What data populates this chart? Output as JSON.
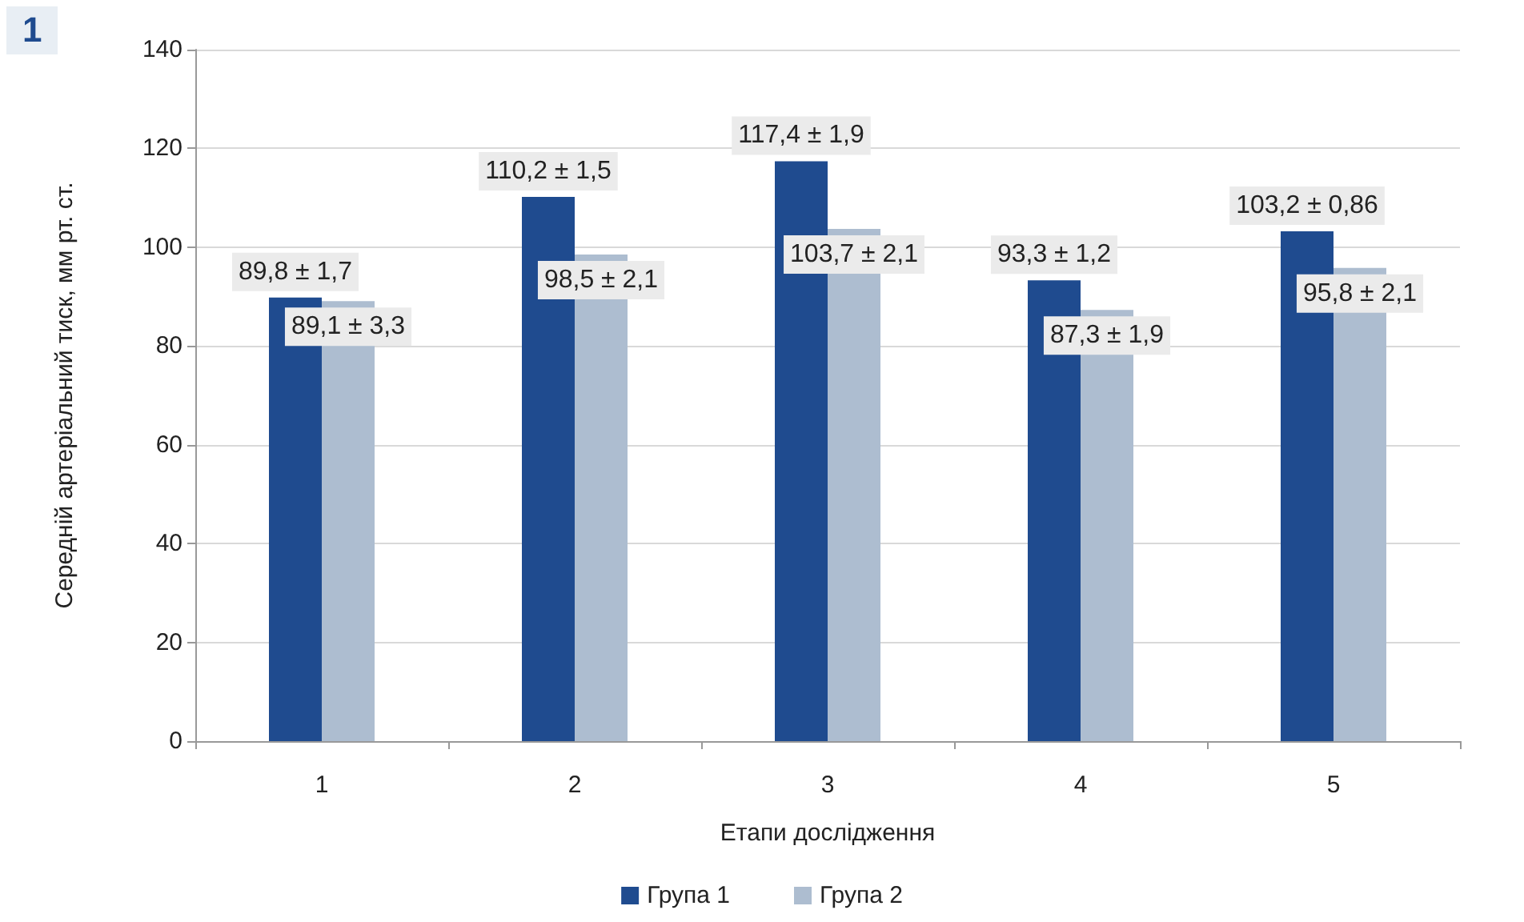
{
  "chart_data": {
    "type": "bar",
    "xlabel": "Етапи дослідження",
    "ylabel": "Середній артеріальний тиск, мм рт. ст.",
    "categories": [
      "1",
      "2",
      "3",
      "4",
      "5"
    ],
    "series": [
      {
        "name": "Група 1",
        "color": "#1f4b8f",
        "values": [
          89.8,
          110.2,
          117.4,
          93.3,
          103.2
        ],
        "value_labels": [
          "89,8 ± 1,7",
          "110,2 ± 1,5",
          "117,4 ± 1,9",
          "93,3 ± 1,2",
          "103,2 ± 0,86"
        ]
      },
      {
        "name": "Група 2",
        "color": "#adbdd0",
        "values": [
          89.1,
          98.5,
          103.7,
          87.3,
          95.8
        ],
        "value_labels": [
          "89,1 ± 3,3",
          "98,5 ± 2,1",
          "103,7 ± 2,1",
          "87,3 ± 1,9",
          "95,8 ± 2,1"
        ]
      }
    ],
    "ylim": [
      0,
      140
    ],
    "yticks": [
      0,
      20,
      40,
      60,
      80,
      100,
      120,
      140
    ],
    "grid": "y",
    "legend": "bottom",
    "annotations": [
      "1"
    ]
  }
}
